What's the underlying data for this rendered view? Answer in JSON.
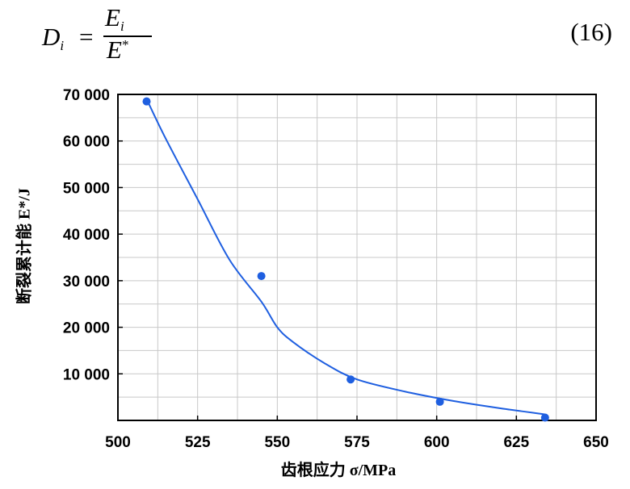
{
  "equation": {
    "lhs": "D",
    "lhs_sub": "i",
    "equals": "=",
    "num": "E",
    "num_sub": "i",
    "den": "E",
    "den_sup": "*",
    "number": "(16)"
  },
  "chart_data": {
    "type": "scatter",
    "title": "",
    "xlabel": "齿根应力 σ/MPa",
    "ylabel": "断裂累计能 E*/J",
    "xlim": [
      500,
      650
    ],
    "ylim": [
      0,
      70000
    ],
    "xticks": [
      500,
      525,
      550,
      575,
      600,
      625,
      650
    ],
    "xtick_labels": [
      "500",
      "525",
      "550",
      "575",
      "600",
      "625",
      "650"
    ],
    "yticks": [
      10000,
      20000,
      30000,
      40000,
      50000,
      60000,
      70000
    ],
    "ytick_labels": [
      "10 000",
      "20 000",
      "30 000",
      "40 000",
      "50 000",
      "60 000",
      "70 000"
    ],
    "grid": true,
    "color": "#1f5fe0",
    "points": [
      {
        "x": 509,
        "y": 68500
      },
      {
        "x": 545,
        "y": 31000
      },
      {
        "x": 573,
        "y": 8800
      },
      {
        "x": 601,
        "y": 4000
      },
      {
        "x": 634,
        "y": 600
      }
    ],
    "fit_curve": [
      {
        "x": 509,
        "y": 69000
      },
      {
        "x": 515,
        "y": 60500
      },
      {
        "x": 525,
        "y": 47500
      },
      {
        "x": 535,
        "y": 34500
      },
      {
        "x": 545,
        "y": 25500
      },
      {
        "x": 550,
        "y": 20000
      },
      {
        "x": 555,
        "y": 16800
      },
      {
        "x": 565,
        "y": 12200
      },
      {
        "x": 575,
        "y": 8800
      },
      {
        "x": 590,
        "y": 6200
      },
      {
        "x": 605,
        "y": 4200
      },
      {
        "x": 620,
        "y": 2600
      },
      {
        "x": 634,
        "y": 1300
      }
    ]
  }
}
